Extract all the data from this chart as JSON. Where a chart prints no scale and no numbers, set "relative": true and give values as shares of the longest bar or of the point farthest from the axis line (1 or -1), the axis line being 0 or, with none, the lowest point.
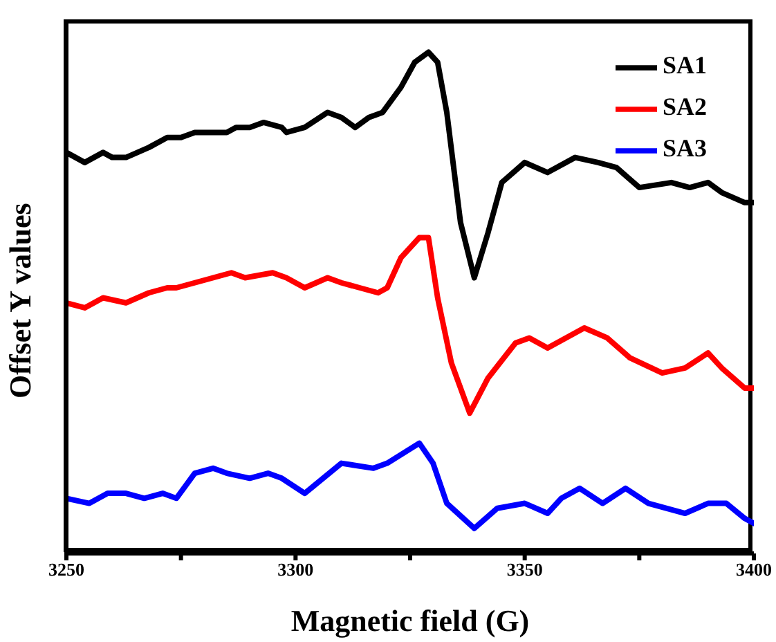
{
  "chart_data": {
    "type": "line",
    "xlabel": "Magnetic field (G)",
    "ylabel": "Offset  Y values",
    "relative": true,
    "xlim": [
      3250,
      3400
    ],
    "xticks": [
      3250,
      {
        "value": 3275,
        "label": null
      },
      3300,
      {
        "value": 3325,
        "label": null
      },
      3350,
      {
        "value": 3375,
        "label": null
      },
      3400
    ],
    "legend": "top right",
    "grid": false,
    "marker": "none",
    "line_style": "solid",
    "series": [
      {
        "name": "SA1",
        "color": "#000000",
        "x": [
          3250,
          3254,
          3258,
          3260,
          3263,
          3268,
          3272,
          3275,
          3278,
          3280,
          3285,
          3287,
          3290,
          3293,
          3297,
          3298,
          3302,
          3307,
          3310,
          3313,
          3316,
          3319,
          3323,
          3326,
          3329,
          3331,
          3333,
          3336,
          3339,
          3342,
          3345,
          3350,
          3355,
          3361,
          3366,
          3370,
          3375,
          3382,
          3386,
          3390,
          3393,
          3398,
          3400
        ],
        "values": [
          0.8,
          0.78,
          0.8,
          0.79,
          0.79,
          0.81,
          0.83,
          0.83,
          0.84,
          0.84,
          0.84,
          0.85,
          0.85,
          0.86,
          0.85,
          0.84,
          0.85,
          0.88,
          0.87,
          0.85,
          0.87,
          0.88,
          0.93,
          0.98,
          1.0,
          0.98,
          0.88,
          0.66,
          0.55,
          0.64,
          0.74,
          0.78,
          0.76,
          0.79,
          0.78,
          0.77,
          0.73,
          0.74,
          0.73,
          0.74,
          0.72,
          0.7,
          0.7
        ]
      },
      {
        "name": "SA2",
        "color": "#ff0000",
        "x": [
          3250,
          3254,
          3258,
          3263,
          3268,
          3272,
          3274,
          3278,
          3282,
          3286,
          3289,
          3295,
          3298,
          3302,
          3307,
          3310,
          3314,
          3318,
          3320,
          3323,
          3327,
          3329,
          3331,
          3334,
          3338,
          3342,
          3348,
          3351,
          3355,
          3359,
          3363,
          3368,
          3373,
          3380,
          3385,
          3390,
          3393,
          3398,
          3400
        ],
        "values": [
          0.5,
          0.49,
          0.51,
          0.5,
          0.52,
          0.53,
          0.53,
          0.54,
          0.55,
          0.56,
          0.55,
          0.56,
          0.55,
          0.53,
          0.55,
          0.54,
          0.53,
          0.52,
          0.53,
          0.59,
          0.63,
          0.63,
          0.51,
          0.38,
          0.28,
          0.35,
          0.42,
          0.43,
          0.41,
          0.43,
          0.45,
          0.43,
          0.39,
          0.36,
          0.37,
          0.4,
          0.37,
          0.33,
          0.33
        ]
      },
      {
        "name": "SA3",
        "color": "#0000ff",
        "x": [
          3250,
          3255,
          3259,
          3263,
          3267,
          3271,
          3274,
          3278,
          3282,
          3285,
          3290,
          3294,
          3297,
          3302,
          3306,
          3310,
          3317,
          3320,
          3327,
          3330,
          3333,
          3339,
          3344,
          3350,
          3355,
          3358,
          3362,
          3367,
          3372,
          3377,
          3381,
          3385,
          3390,
          3394,
          3398,
          3400
        ],
        "values": [
          0.11,
          0.1,
          0.12,
          0.12,
          0.11,
          0.12,
          0.11,
          0.16,
          0.17,
          0.16,
          0.15,
          0.16,
          0.15,
          0.12,
          0.15,
          0.18,
          0.17,
          0.18,
          0.22,
          0.18,
          0.1,
          0.05,
          0.09,
          0.1,
          0.08,
          0.11,
          0.13,
          0.1,
          0.13,
          0.1,
          0.09,
          0.08,
          0.1,
          0.1,
          0.07,
          0.06
        ]
      }
    ]
  }
}
